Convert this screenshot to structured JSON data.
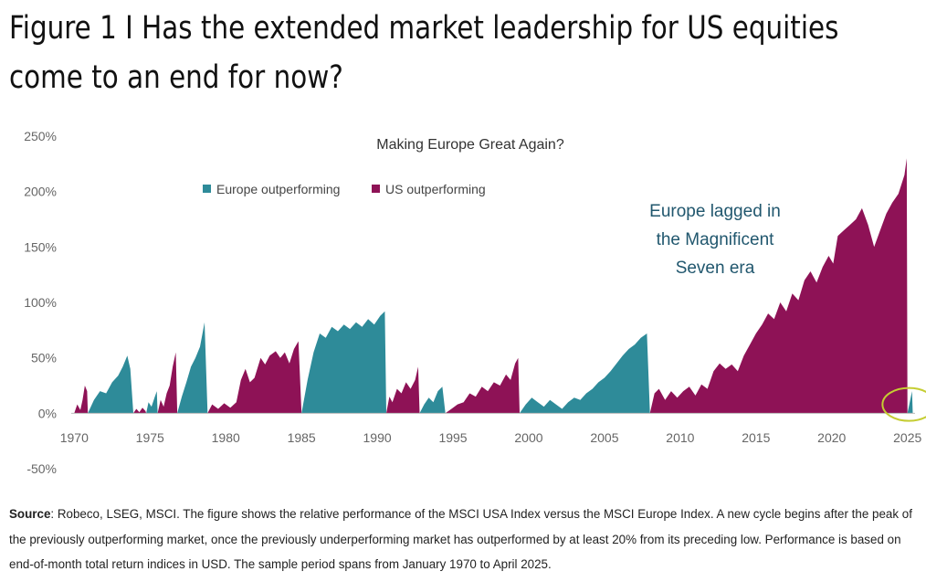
{
  "figure": {
    "title_line1": "Figure 1 I Has the extended market leadership for US equities",
    "title_line2": "come to an end for now?"
  },
  "colors": {
    "europe": "#2e8b99",
    "us": "#8e1256",
    "annotation": "#21576e",
    "circle": "#c5cd32",
    "axis_text": "#666666"
  },
  "chart_data": {
    "type": "area",
    "title": "Making Europe Great Again?",
    "annotation": "Europe lagged in the Magnificent Seven era",
    "annotation_lines": [
      "Europe lagged in",
      "the Magnificent",
      "Seven era"
    ],
    "legend": [
      "Europe outperforming",
      "US outperforming"
    ],
    "legend_position": "top-left",
    "grid": false,
    "xlim": [
      1969.8,
      2025.5
    ],
    "ylim": [
      -50,
      250
    ],
    "x_ticks": [
      "1970",
      "1975",
      "1980",
      "1985",
      "1990",
      "1995",
      "2000",
      "2005",
      "2010",
      "2015",
      "2020",
      "2025"
    ],
    "y_ticks": [
      "250%",
      "200%",
      "150%",
      "100%",
      "50%",
      "0%",
      "-50%"
    ],
    "y_tick_values": [
      250,
      200,
      150,
      100,
      50,
      0,
      -50
    ],
    "series": [
      {
        "name": "US outperforming",
        "color": "#8e1256",
        "segments": [
          {
            "start": 1970.0,
            "end": 1970.9,
            "points": [
              [
                1970.0,
                0
              ],
              [
                1970.2,
                8
              ],
              [
                1970.4,
                3
              ],
              [
                1970.55,
                12
              ],
              [
                1970.7,
                25
              ],
              [
                1970.85,
                20
              ],
              [
                1970.9,
                0
              ]
            ]
          },
          {
            "start": 1973.9,
            "end": 1974.75,
            "points": [
              [
                1973.9,
                0
              ],
              [
                1974.1,
                4
              ],
              [
                1974.3,
                1
              ],
              [
                1974.5,
                5
              ],
              [
                1974.7,
                2
              ],
              [
                1974.75,
                0
              ]
            ]
          },
          {
            "start": 1975.5,
            "end": 1976.8,
            "points": [
              [
                1975.5,
                0
              ],
              [
                1975.7,
                12
              ],
              [
                1975.9,
                6
              ],
              [
                1976.1,
                18
              ],
              [
                1976.3,
                25
              ],
              [
                1976.5,
                42
              ],
              [
                1976.7,
                55
              ],
              [
                1976.8,
                0
              ]
            ]
          },
          {
            "start": 1978.8,
            "end": 1985.0,
            "points": [
              [
                1978.8,
                0
              ],
              [
                1979.1,
                8
              ],
              [
                1979.5,
                4
              ],
              [
                1979.9,
                9
              ],
              [
                1980.3,
                5
              ],
              [
                1980.7,
                10
              ],
              [
                1981.0,
                30
              ],
              [
                1981.3,
                40
              ],
              [
                1981.6,
                28
              ],
              [
                1981.9,
                32
              ],
              [
                1982.3,
                50
              ],
              [
                1982.6,
                44
              ],
              [
                1982.9,
                52
              ],
              [
                1983.3,
                56
              ],
              [
                1983.6,
                50
              ],
              [
                1983.9,
                55
              ],
              [
                1984.2,
                45
              ],
              [
                1984.5,
                58
              ],
              [
                1984.8,
                65
              ],
              [
                1985.0,
                0
              ]
            ]
          },
          {
            "start": 1990.6,
            "end": 1992.8,
            "points": [
              [
                1990.6,
                0
              ],
              [
                1990.8,
                15
              ],
              [
                1991.0,
                10
              ],
              [
                1991.3,
                22
              ],
              [
                1991.6,
                18
              ],
              [
                1991.9,
                28
              ],
              [
                1992.2,
                22
              ],
              [
                1992.5,
                30
              ],
              [
                1992.7,
                42
              ],
              [
                1992.8,
                0
              ]
            ]
          },
          {
            "start": 1994.5,
            "end": 1999.4,
            "points": [
              [
                1994.5,
                0
              ],
              [
                1994.9,
                4
              ],
              [
                1995.3,
                8
              ],
              [
                1995.7,
                10
              ],
              [
                1996.1,
                18
              ],
              [
                1996.5,
                15
              ],
              [
                1996.9,
                24
              ],
              [
                1997.3,
                20
              ],
              [
                1997.7,
                28
              ],
              [
                1998.1,
                25
              ],
              [
                1998.5,
                35
              ],
              [
                1998.8,
                30
              ],
              [
                1999.1,
                45
              ],
              [
                1999.3,
                50
              ],
              [
                1999.4,
                0
              ]
            ]
          },
          {
            "start": 2008.0,
            "end": 2025.0,
            "points": [
              [
                2008.0,
                0
              ],
              [
                2008.3,
                18
              ],
              [
                2008.6,
                22
              ],
              [
                2009.0,
                12
              ],
              [
                2009.4,
                20
              ],
              [
                2009.8,
                14
              ],
              [
                2010.2,
                20
              ],
              [
                2010.6,
                24
              ],
              [
                2011.0,
                16
              ],
              [
                2011.4,
                26
              ],
              [
                2011.8,
                22
              ],
              [
                2012.2,
                38
              ],
              [
                2012.6,
                45
              ],
              [
                2013.0,
                40
              ],
              [
                2013.4,
                44
              ],
              [
                2013.8,
                38
              ],
              [
                2014.2,
                52
              ],
              [
                2014.6,
                62
              ],
              [
                2015.0,
                72
              ],
              [
                2015.4,
                80
              ],
              [
                2015.8,
                90
              ],
              [
                2016.2,
                85
              ],
              [
                2016.6,
                100
              ],
              [
                2017.0,
                92
              ],
              [
                2017.4,
                108
              ],
              [
                2017.8,
                102
              ],
              [
                2018.2,
                120
              ],
              [
                2018.6,
                128
              ],
              [
                2019.0,
                118
              ],
              [
                2019.4,
                132
              ],
              [
                2019.8,
                142
              ],
              [
                2020.1,
                135
              ],
              [
                2020.4,
                160
              ],
              [
                2020.8,
                165
              ],
              [
                2021.2,
                170
              ],
              [
                2021.6,
                175
              ],
              [
                2022.0,
                185
              ],
              [
                2022.4,
                170
              ],
              [
                2022.8,
                150
              ],
              [
                2023.2,
                165
              ],
              [
                2023.6,
                180
              ],
              [
                2024.0,
                190
              ],
              [
                2024.4,
                198
              ],
              [
                2024.8,
                215
              ],
              [
                2024.95,
                230
              ],
              [
                2025.0,
                0
              ]
            ]
          }
        ]
      },
      {
        "name": "Europe outperforming",
        "color": "#2e8b99",
        "segments": [
          {
            "start": 1970.9,
            "end": 1973.9,
            "points": [
              [
                1970.9,
                0
              ],
              [
                1971.3,
                12
              ],
              [
                1971.7,
                20
              ],
              [
                1972.1,
                18
              ],
              [
                1972.5,
                28
              ],
              [
                1972.9,
                34
              ],
              [
                1973.2,
                42
              ],
              [
                1973.5,
                52
              ],
              [
                1973.7,
                40
              ],
              [
                1973.9,
                0
              ]
            ]
          },
          {
            "start": 1974.75,
            "end": 1975.5,
            "points": [
              [
                1974.75,
                0
              ],
              [
                1974.9,
                10
              ],
              [
                1975.1,
                6
              ],
              [
                1975.3,
                14
              ],
              [
                1975.45,
                20
              ],
              [
                1975.5,
                0
              ]
            ]
          },
          {
            "start": 1976.8,
            "end": 1978.8,
            "points": [
              [
                1976.8,
                0
              ],
              [
                1977.1,
                15
              ],
              [
                1977.4,
                28
              ],
              [
                1977.7,
                42
              ],
              [
                1978.0,
                50
              ],
              [
                1978.3,
                60
              ],
              [
                1978.6,
                82
              ],
              [
                1978.8,
                0
              ]
            ]
          },
          {
            "start": 1985.0,
            "end": 1990.6,
            "points": [
              [
                1985.0,
                0
              ],
              [
                1985.4,
                30
              ],
              [
                1985.8,
                55
              ],
              [
                1986.2,
                72
              ],
              [
                1986.6,
                68
              ],
              [
                1987.0,
                78
              ],
              [
                1987.4,
                74
              ],
              [
                1987.8,
                80
              ],
              [
                1988.2,
                76
              ],
              [
                1988.6,
                82
              ],
              [
                1989.0,
                78
              ],
              [
                1989.4,
                85
              ],
              [
                1989.8,
                80
              ],
              [
                1990.2,
                88
              ],
              [
                1990.5,
                92
              ],
              [
                1990.6,
                0
              ]
            ]
          },
          {
            "start": 1992.8,
            "end": 1994.5,
            "points": [
              [
                1992.8,
                0
              ],
              [
                1993.1,
                8
              ],
              [
                1993.4,
                14
              ],
              [
                1993.7,
                10
              ],
              [
                1994.0,
                20
              ],
              [
                1994.3,
                24
              ],
              [
                1994.5,
                0
              ]
            ]
          },
          {
            "start": 1999.4,
            "end": 2008.0,
            "points": [
              [
                1999.4,
                0
              ],
              [
                1999.8,
                8
              ],
              [
                2000.2,
                14
              ],
              [
                2000.6,
                10
              ],
              [
                2001.0,
                6
              ],
              [
                2001.4,
                12
              ],
              [
                2001.8,
                8
              ],
              [
                2002.2,
                4
              ],
              [
                2002.6,
                10
              ],
              [
                2003.0,
                14
              ],
              [
                2003.4,
                12
              ],
              [
                2003.8,
                18
              ],
              [
                2004.2,
                22
              ],
              [
                2004.6,
                28
              ],
              [
                2005.0,
                32
              ],
              [
                2005.4,
                38
              ],
              [
                2005.8,
                45
              ],
              [
                2006.2,
                52
              ],
              [
                2006.6,
                58
              ],
              [
                2007.0,
                62
              ],
              [
                2007.4,
                68
              ],
              [
                2007.8,
                72
              ],
              [
                2008.0,
                0
              ]
            ]
          },
          {
            "start": 2025.0,
            "end": 2025.35,
            "points": [
              [
                2025.0,
                0
              ],
              [
                2025.15,
                10
              ],
              [
                2025.3,
                20
              ],
              [
                2025.35,
                0
              ]
            ]
          }
        ]
      }
    ]
  },
  "source": {
    "label": "Source",
    "text": ": Robeco, LSEG, MSCI. The figure shows the relative performance of the MSCI USA Index versus the MSCI Europe Index. A new cycle begins after the peak of the previously outperforming market, once the previously underperforming market has outperformed by at least 20% from its preceding low. Performance is based on end-of-month total return indices in USD. The sample period spans from January 1970 to April 2025."
  }
}
